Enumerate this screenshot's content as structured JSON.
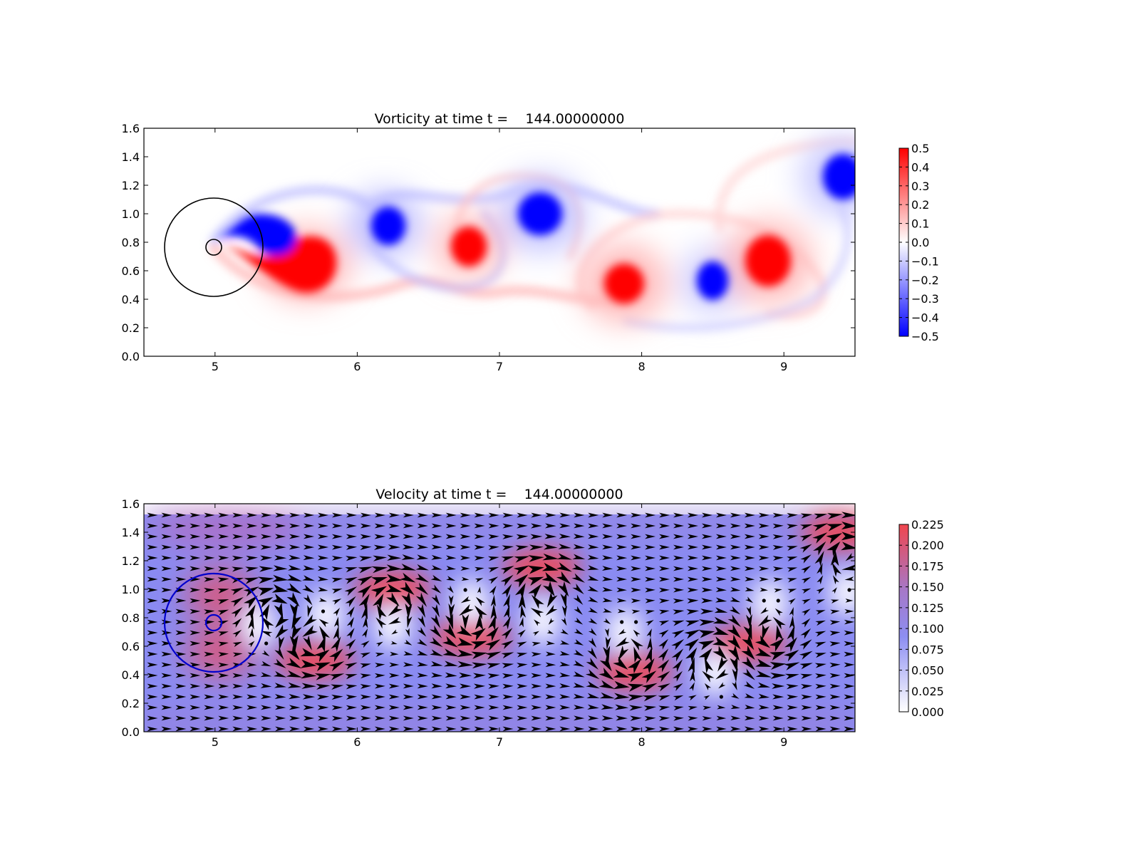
{
  "colors": {
    "vorticity_positive": "#ff0000",
    "vorticity_negative": "#0000ff",
    "speed_high": "#ee4a55",
    "speed_mid": "#8a87f2",
    "speed_low": "#ffffff",
    "arrow": "#000000",
    "blue_circles": "#0000cc",
    "black_circles": "#000000",
    "small_circle_red": "#ff0000"
  },
  "chart_data": [
    {
      "type": "heatmap",
      "title": "Vorticity at time t =    144.00000000",
      "xlabel": "",
      "ylabel": "",
      "xlim": [
        4.5,
        9.5
      ],
      "ylim": [
        0.0,
        1.6
      ],
      "x_ticks": [
        "5",
        "6",
        "7",
        "8",
        "9"
      ],
      "y_ticks": [
        "0.0",
        "0.2",
        "0.4",
        "0.6",
        "0.8",
        "1.0",
        "1.2",
        "1.4",
        "1.6"
      ],
      "colorbar": {
        "range": [
          -0.5,
          0.5
        ],
        "colormap": "bwr",
        "ticks": [
          "0.5",
          "0.4",
          "0.3",
          "0.2",
          "0.1",
          "0.0",
          "−0.1",
          "−0.2",
          "−0.3",
          "−0.4",
          "−0.5"
        ]
      },
      "circles": [
        {
          "cx": 5.0,
          "cy": 0.76,
          "r": 0.35,
          "color": "black"
        },
        {
          "cx": 5.0,
          "cy": 0.76,
          "r": 0.055,
          "color": "black"
        }
      ],
      "vortices": [
        {
          "x": 5.68,
          "y": 0.62,
          "sign": 1,
          "strength": 0.5
        },
        {
          "x": 5.42,
          "y": 0.84,
          "sign": -1,
          "strength": 0.5
        },
        {
          "x": 6.23,
          "y": 0.91,
          "sign": -1,
          "strength": 0.5
        },
        {
          "x": 6.8,
          "y": 0.75,
          "sign": 1,
          "strength": 0.5
        },
        {
          "x": 7.3,
          "y": 0.98,
          "sign": -1,
          "strength": 0.5
        },
        {
          "x": 7.9,
          "y": 0.5,
          "sign": 1,
          "strength": 0.5
        },
        {
          "x": 8.52,
          "y": 0.52,
          "sign": -1,
          "strength": 0.5
        },
        {
          "x": 8.9,
          "y": 0.66,
          "sign": 1,
          "strength": 0.5
        },
        {
          "x": 9.45,
          "y": 1.25,
          "sign": -1,
          "strength": 0.5
        }
      ]
    },
    {
      "type": "heatmap",
      "title": "Velocity at time t =    144.00000000",
      "xlabel": "",
      "ylabel": "",
      "xlim": [
        4.5,
        9.5
      ],
      "ylim": [
        0.0,
        1.6
      ],
      "x_ticks": [
        "5",
        "6",
        "7",
        "8",
        "9"
      ],
      "y_ticks": [
        "0.0",
        "0.2",
        "0.4",
        "0.6",
        "0.8",
        "1.0",
        "1.2",
        "1.4",
        "1.6"
      ],
      "colorbar": {
        "range": [
          0.0,
          0.225
        ],
        "colormap": "white-blue-red",
        "ticks": [
          "0.225",
          "0.200",
          "0.175",
          "0.150",
          "0.125",
          "0.100",
          "0.075",
          "0.050",
          "0.025",
          "0.000"
        ]
      },
      "quiver": true,
      "circles": [
        {
          "cx": 5.0,
          "cy": 0.76,
          "r": 0.35,
          "color": "blue"
        },
        {
          "cx": 5.0,
          "cy": 0.76,
          "r": 0.055,
          "color": "blue"
        }
      ],
      "high_speed_regions": [
        {
          "x": 5.7,
          "y": 0.5,
          "level": 0.22
        },
        {
          "x": 6.25,
          "y": 1.0,
          "level": 0.2
        },
        {
          "x": 6.8,
          "y": 0.66,
          "level": 0.2
        },
        {
          "x": 7.3,
          "y": 1.15,
          "level": 0.22
        },
        {
          "x": 7.95,
          "y": 0.42,
          "level": 0.22
        },
        {
          "x": 8.75,
          "y": 0.62,
          "level": 0.22
        },
        {
          "x": 9.4,
          "y": 1.4,
          "level": 0.22
        }
      ],
      "low_speed_regions": [
        {
          "x": 5.3,
          "y": 0.75,
          "level": 0.01
        },
        {
          "x": 5.78,
          "y": 0.82,
          "level": 0.01
        },
        {
          "x": 6.25,
          "y": 0.75,
          "level": 0.01
        },
        {
          "x": 6.8,
          "y": 0.9,
          "level": 0.01
        },
        {
          "x": 7.3,
          "y": 0.78,
          "level": 0.01
        },
        {
          "x": 7.88,
          "y": 0.7,
          "level": 0.01
        },
        {
          "x": 8.52,
          "y": 0.42,
          "level": 0.01
        },
        {
          "x": 8.9,
          "y": 0.9,
          "level": 0.01
        },
        {
          "x": 9.45,
          "y": 0.98,
          "level": 0.01
        }
      ]
    }
  ]
}
